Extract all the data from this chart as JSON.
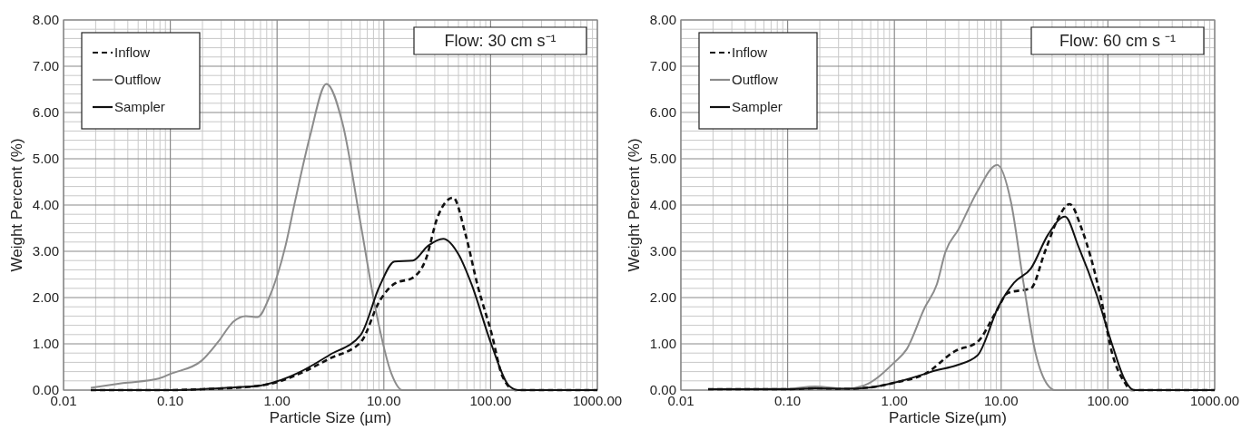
{
  "chart_data": [
    {
      "type": "line",
      "xlabel": "Particle Size (µm)",
      "ylabel": "Weight Percent (%)",
      "log": "x",
      "grid": true,
      "legend": "top left",
      "annotations": [
        "Flow: 30 cm s⁻¹"
      ],
      "xlim": [
        0.01,
        1000
      ],
      "ylim": [
        0,
        8
      ],
      "xticks": [
        {
          "value": 0.01,
          "label": "0.01"
        },
        {
          "value": 0.1,
          "label": "0.10"
        },
        {
          "value": 1,
          "label": "1.00"
        },
        {
          "value": 10,
          "label": "10.00"
        },
        {
          "value": 100,
          "label": "100.00"
        },
        {
          "value": 1000,
          "label": "1000.00"
        }
      ],
      "yticks": [
        {
          "value": 0,
          "label": "0.00"
        },
        {
          "value": 1,
          "label": "1.00"
        },
        {
          "value": 2,
          "label": "2.00"
        },
        {
          "value": 3,
          "label": "3.00"
        },
        {
          "value": 4,
          "label": "4.00"
        },
        {
          "value": 5,
          "label": "5.00"
        },
        {
          "value": 6,
          "label": "6.00"
        },
        {
          "value": 7,
          "label": "7.00"
        },
        {
          "value": 8,
          "label": "8.00"
        }
      ],
      "series": [
        {
          "name": "Inflow",
          "color": "#111111",
          "line_style": "dashed",
          "x": [
            0.018,
            0.1,
            0.2,
            0.4,
            0.7,
            1.0,
            1.6,
            3.1,
            6.1,
            9.1,
            12.6,
            18.7,
            24.5,
            32,
            44.6,
            58,
            76,
            102,
            129,
            170,
            300,
            1000
          ],
          "values": [
            0,
            0,
            0.02,
            0.05,
            0.1,
            0.17,
            0.35,
            0.68,
            1.04,
            1.92,
            2.3,
            2.43,
            2.8,
            3.75,
            4.16,
            3.38,
            2.24,
            1.23,
            0.3,
            0,
            0,
            0
          ]
        },
        {
          "name": "Outflow",
          "color": "#8c8c8c",
          "line_style": "solid",
          "x": [
            0.018,
            0.036,
            0.078,
            0.1,
            0.195,
            0.28,
            0.39,
            0.51,
            0.66,
            0.84,
            1.2,
            1.48,
            2.04,
            2.9,
            4.1,
            6.1,
            8.5,
            11.8,
            14.9,
            30,
            1000
          ],
          "values": [
            0.05,
            0.15,
            0.25,
            0.35,
            0.63,
            1.04,
            1.48,
            1.6,
            1.58,
            1.99,
            3.12,
            4.1,
            5.5,
            6.62,
            5.77,
            3.56,
            1.67,
            0.35,
            0,
            0,
            0
          ]
        },
        {
          "name": "Sampler",
          "color": "#111111",
          "line_style": "solid",
          "x": [
            0.018,
            0.1,
            0.2,
            0.4,
            0.7,
            1.0,
            1.6,
            3.1,
            6.1,
            9.1,
            12.6,
            18.7,
            26,
            36,
            51,
            66,
            102,
            148,
            181,
            300,
            1000
          ],
          "values": [
            0,
            0,
            0.02,
            0.06,
            0.1,
            0.19,
            0.38,
            0.76,
            1.2,
            2.24,
            2.78,
            2.8,
            3.12,
            3.27,
            2.9,
            2.3,
            0.98,
            0.1,
            0,
            0,
            0
          ]
        }
      ]
    },
    {
      "type": "line",
      "xlabel": "Particle Size(µm)",
      "ylabel": "Weight Percent (%)",
      "log": "x",
      "grid": true,
      "legend": "top left",
      "annotations": [
        "Flow: 60 cm s ⁻¹"
      ],
      "xlim": [
        0.01,
        1000
      ],
      "ylim": [
        0,
        8
      ],
      "xticks": [
        {
          "value": 0.01,
          "label": "0.01"
        },
        {
          "value": 0.1,
          "label": "0.10"
        },
        {
          "value": 1,
          "label": "1.00"
        },
        {
          "value": 10,
          "label": "10.00"
        },
        {
          "value": 100,
          "label": "100.00"
        },
        {
          "value": 1000,
          "label": "1000.00"
        }
      ],
      "yticks": [
        {
          "value": 0,
          "label": "0.00"
        },
        {
          "value": 1,
          "label": "1.00"
        },
        {
          "value": 2,
          "label": "2.00"
        },
        {
          "value": 3,
          "label": "3.00"
        },
        {
          "value": 4,
          "label": "4.00"
        },
        {
          "value": 5,
          "label": "5.00"
        },
        {
          "value": 6,
          "label": "6.00"
        },
        {
          "value": 7,
          "label": "7.00"
        },
        {
          "value": 8,
          "label": "8.00"
        }
      ],
      "series": [
        {
          "name": "Inflow",
          "color": "#111111",
          "line_style": "dashed",
          "x": [
            0.018,
            0.1,
            0.18,
            0.35,
            0.6,
            1.0,
            1.93,
            3.75,
            6.0,
            8.8,
            11.6,
            19,
            25.6,
            33.5,
            43.8,
            56.9,
            85,
            110,
            144,
            165,
            300,
            1000
          ],
          "values": [
            0.02,
            0.02,
            0.04,
            0.03,
            0.06,
            0.16,
            0.35,
            0.85,
            1.04,
            1.66,
            2.1,
            2.2,
            2.98,
            3.67,
            4.02,
            3.48,
            2.04,
            0.78,
            0.16,
            0,
            0,
            0
          ]
        },
        {
          "name": "Outflow",
          "color": "#8c8c8c",
          "line_style": "solid",
          "x": [
            0.018,
            0.1,
            0.18,
            0.35,
            0.52,
            1.0,
            1.3,
            1.93,
            2.5,
            3.0,
            4.0,
            6.0,
            9.2,
            12.4,
            16.1,
            21,
            27.5,
            32,
            100,
            1000
          ],
          "values": [
            0.02,
            0.03,
            0.08,
            0.03,
            0.1,
            0.6,
            0.88,
            1.79,
            2.29,
            2.98,
            3.48,
            4.3,
            4.87,
            4.05,
            2.35,
            0.8,
            0.1,
            0,
            0,
            0
          ]
        },
        {
          "name": "Sampler",
          "color": "#111111",
          "line_style": "solid",
          "x": [
            0.018,
            0.1,
            0.18,
            0.35,
            0.6,
            1.0,
            1.93,
            2.4,
            3.75,
            6.0,
            9.5,
            13.2,
            19,
            27.5,
            39.6,
            53,
            79,
            110,
            144,
            175,
            300,
            1000
          ],
          "values": [
            0.02,
            0.02,
            0.04,
            0.03,
            0.06,
            0.16,
            0.35,
            0.42,
            0.53,
            0.75,
            1.82,
            2.32,
            2.63,
            3.36,
            3.75,
            3.1,
            2.04,
            0.97,
            0.22,
            0,
            0,
            0
          ]
        }
      ]
    }
  ]
}
